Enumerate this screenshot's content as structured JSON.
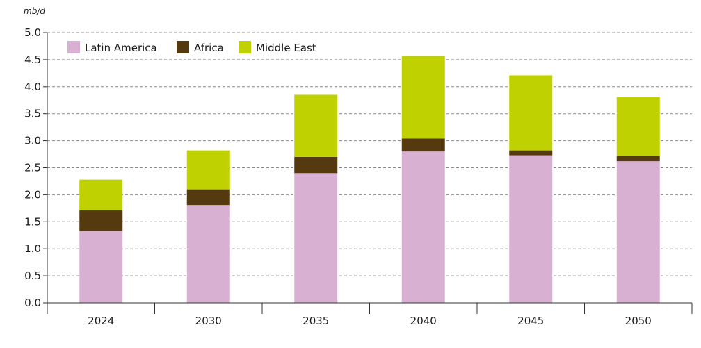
{
  "chart_data": {
    "type": "bar",
    "stacked": true,
    "unit_label": "mb/d",
    "categories": [
      "2024",
      "2030",
      "2035",
      "2040",
      "2045",
      "2050"
    ],
    "series": [
      {
        "name": "Latin America",
        "color": "#d8b0d2",
        "values": [
          1.33,
          1.81,
          2.4,
          2.8,
          2.73,
          2.62
        ]
      },
      {
        "name": "Africa",
        "color": "#553a0f",
        "values": [
          0.38,
          0.29,
          0.3,
          0.24,
          0.09,
          0.1
        ]
      },
      {
        "name": "Middle East",
        "color": "#bfd100",
        "values": [
          0.57,
          0.72,
          1.15,
          1.53,
          1.39,
          1.09
        ]
      }
    ],
    "ylim": [
      0,
      5
    ],
    "yticks": [
      "0.0",
      "0.5",
      "1.0",
      "1.5",
      "2.0",
      "2.5",
      "3.0",
      "3.5",
      "4.0",
      "4.5",
      "5.0"
    ],
    "grid": true,
    "legend_position": "top-left"
  }
}
